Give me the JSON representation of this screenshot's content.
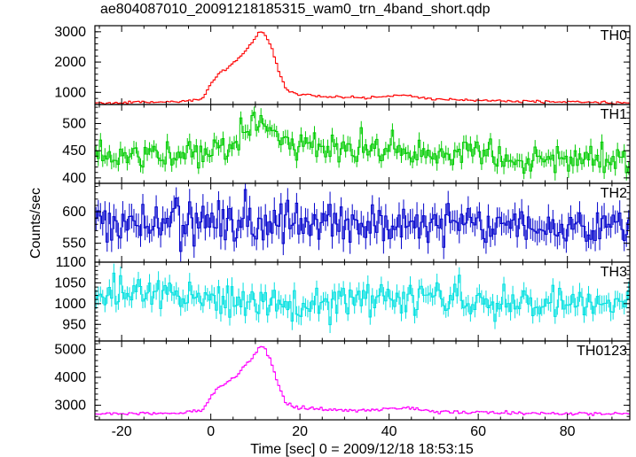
{
  "title": "ae804087010_20091218185315_wam0_trn_4band_short.qdp",
  "xlabel": "Time [sec] 0 = 2009/12/18 18:53:15",
  "ylabel": "Counts/sec",
  "chart_data": {
    "type": "line",
    "style": "stepped histogram with vertical error bars",
    "xlim": [
      -26,
      94
    ],
    "x_ticks": [
      -20,
      0,
      20,
      40,
      60,
      80
    ],
    "bin_width": 0.5,
    "panels": [
      {
        "name": "TH0",
        "color": "#ff0000",
        "ylim": [
          600,
          3200
        ],
        "y_ticks": [
          1000,
          2000,
          3000
        ],
        "noise": 22,
        "x": [
          -25,
          -10,
          -5,
          -2,
          0,
          2,
          4,
          6,
          8,
          10,
          11,
          12,
          13,
          14,
          15,
          16,
          17,
          18,
          20,
          25,
          30,
          35,
          40,
          43,
          45,
          47,
          50,
          60,
          70,
          80,
          93
        ],
        "values": [
          650,
          680,
          720,
          760,
          1300,
          1650,
          1850,
          2100,
          2400,
          2800,
          3000,
          2950,
          2750,
          2300,
          1800,
          1400,
          1100,
          1000,
          920,
          860,
          830,
          820,
          870,
          920,
          880,
          820,
          780,
          730,
          700,
          680,
          660
        ]
      },
      {
        "name": "TH1",
        "color": "#00cc00",
        "ylim": [
          390,
          535
        ],
        "y_ticks": [
          400,
          450,
          500
        ],
        "noise": 14,
        "x": [
          -25,
          0,
          5,
          8,
          10,
          12,
          15,
          20,
          30,
          45,
          60,
          70,
          80,
          93
        ],
        "values": [
          440,
          445,
          465,
          490,
          510,
          500,
          480,
          460,
          450,
          455,
          440,
          430,
          435,
          430
        ]
      },
      {
        "name": "TH2",
        "color": "#0000cc",
        "ylim": [
          520,
          645
        ],
        "y_ticks": [
          550,
          600
        ],
        "noise": 20,
        "x": [
          -25,
          0,
          10,
          20,
          40,
          60,
          80,
          93
        ],
        "values": [
          585,
          580,
          585,
          580,
          585,
          580,
          575,
          580
        ]
      },
      {
        "name": "TH3",
        "color": "#00e0e0",
        "ylim": [
          910,
          1100
        ],
        "y_ticks": [
          950,
          1000,
          1050,
          1100
        ],
        "noise": 22,
        "x": [
          -25,
          -15,
          0,
          20,
          40,
          60,
          80,
          93
        ],
        "values": [
          1020,
          1035,
          1010,
          1000,
          1015,
          1000,
          995,
          1000
        ]
      },
      {
        "name": "TH0123",
        "color": "#ff00ff",
        "ylim": [
          2480,
          5300
        ],
        "y_ticks": [
          3000,
          4000,
          5000
        ],
        "noise": 30,
        "x": [
          -25,
          -10,
          -5,
          -2,
          0,
          2,
          4,
          6,
          8,
          10,
          11,
          12,
          13,
          14,
          15,
          16,
          17,
          18,
          20,
          25,
          30,
          35,
          40,
          43,
          45,
          47,
          50,
          60,
          70,
          80,
          93
        ],
        "values": [
          2700,
          2720,
          2760,
          2800,
          3300,
          3650,
          3850,
          4100,
          4450,
          4850,
          5100,
          5050,
          4800,
          4300,
          3800,
          3400,
          3100,
          3000,
          2920,
          2860,
          2830,
          2820,
          2870,
          2950,
          2900,
          2830,
          2780,
          2740,
          2720,
          2700,
          2690
        ]
      }
    ]
  }
}
